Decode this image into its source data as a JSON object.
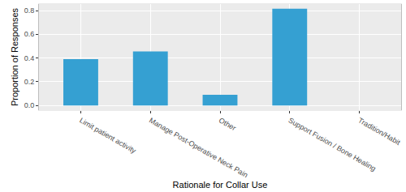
{
  "chart_data": {
    "type": "bar",
    "x_label": "Rationale for Collar Use",
    "y_label": "Proportion of Responses",
    "categories": [
      "Limit patient activity",
      "Manage Post-Operative Neck Pain",
      "Other",
      "Support Fusion / Bone Healing",
      "Tradition/Habit"
    ],
    "values": [
      0.39,
      0.455,
      0.09,
      0.815,
      0
    ],
    "color": "#35a0d2",
    "ylim": [
      -0.04,
      0.855
    ],
    "yticks": [
      {
        "value": 0,
        "label": "0.0"
      },
      0.2,
      0.4,
      0.6,
      0.8
    ],
    "grid": true
  }
}
